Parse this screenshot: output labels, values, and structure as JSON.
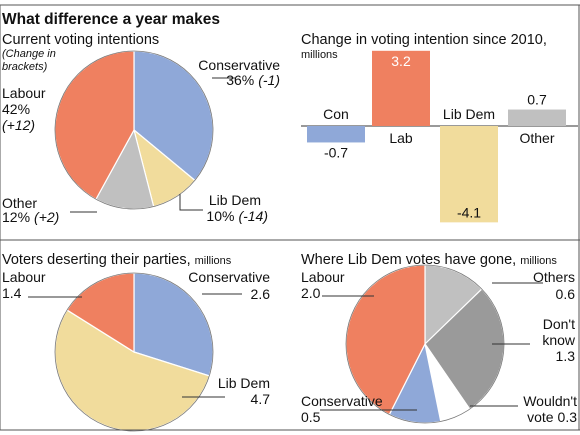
{
  "headline": "What difference a year makes",
  "colors": {
    "conservative": "#8fa8d8",
    "labour": "#ef8060",
    "libdem": "#f1dc9c",
    "other": "#c0c0c0",
    "dontknow": "#9a9a9a",
    "wouldnt": "#ffffff",
    "rule": "#555555"
  },
  "chart_data": [
    {
      "type": "pie",
      "title": "Current voting intentions",
      "subtitle": "(Change in brackets)",
      "slices": [
        {
          "name": "Conservative",
          "value": 36,
          "change": "(-1)",
          "color_key": "conservative",
          "value_label": "36%",
          "change_label": "(-1)"
        },
        {
          "name": "Lib Dem",
          "value": 10,
          "change": "(-14)",
          "color_key": "libdem",
          "value_label": "10%",
          "change_label": "(-14)"
        },
        {
          "name": "Other",
          "value": 12,
          "change": "(+2)",
          "color_key": "other",
          "value_label": "12%",
          "change_label": "(+2)"
        },
        {
          "name": "Labour",
          "value": 42,
          "change": "(+12)",
          "color_key": "labour",
          "value_label": "42%",
          "change_label": "(+12)"
        }
      ]
    },
    {
      "type": "bar",
      "title": "Change in voting intention since 2010,",
      "unit": "millions",
      "categories": [
        "Con",
        "Lab",
        "Lib Dem",
        "Other"
      ],
      "values": [
        -0.7,
        3.2,
        -4.1,
        0.7
      ],
      "value_labels": [
        "-0.7",
        "3.2",
        "-4.1",
        "0.7"
      ],
      "color_keys": [
        "conservative",
        "labour",
        "libdem",
        "other"
      ],
      "ylim": [
        -4.1,
        3.2
      ]
    },
    {
      "type": "pie",
      "title": "Voters deserting their parties,",
      "unit": "millions",
      "slices": [
        {
          "name": "Conservative",
          "value": 2.6,
          "color_key": "conservative",
          "value_label": "2.6"
        },
        {
          "name": "Lib Dem",
          "value": 4.7,
          "color_key": "libdem",
          "value_label": "4.7"
        },
        {
          "name": "Labour",
          "value": 1.4,
          "color_key": "labour",
          "value_label": "1.4"
        }
      ]
    },
    {
      "type": "pie",
      "title": "Where Lib Dem votes have gone,",
      "unit": "millions",
      "slices": [
        {
          "name": "Others",
          "value": 0.6,
          "color_key": "other",
          "value_label": "0.6"
        },
        {
          "name": "Don't know",
          "value": 1.3,
          "color_key": "dontknow",
          "value_label": "1.3"
        },
        {
          "name": "Wouldn't vote",
          "value": 0.3,
          "color_key": "wouldnt",
          "value_label": "0.3"
        },
        {
          "name": "Conservative",
          "value": 0.5,
          "color_key": "conservative",
          "value_label": "0.5"
        },
        {
          "name": "Labour",
          "value": 2.0,
          "color_key": "labour",
          "value_label": "2.0"
        }
      ]
    }
  ],
  "labels": {
    "p1": {
      "con_name": "Conservative",
      "con_val": "36%",
      "con_chg": "(-1)",
      "lab_name": "Labour",
      "lab_val": "42%",
      "lab_chg": "(+12)",
      "oth_name": "Other",
      "oth_val": "12%",
      "oth_chg": "(+2)",
      "ld_name": "Lib Dem",
      "ld_val": "10%",
      "ld_chg": "(-14)",
      "note1": "(Change in",
      "note2": "brackets)"
    },
    "p3": {
      "lab_name": "Labour",
      "lab_val": "1.4",
      "con_name": "Conservative",
      "con_val": "2.6",
      "ld_name": "Lib Dem",
      "ld_val": "4.7"
    },
    "p4": {
      "lab_name": "Labour",
      "lab_val": "2.0",
      "oth_name": "Others",
      "oth_val": "0.6",
      "dk_1": "Don't",
      "dk_2": "know",
      "dk_val": "1.3",
      "wv_1": "Wouldn't",
      "wv_2": "vote",
      "wv_val": "0.3",
      "con_name": "Conservative",
      "con_val": "0.5"
    }
  }
}
